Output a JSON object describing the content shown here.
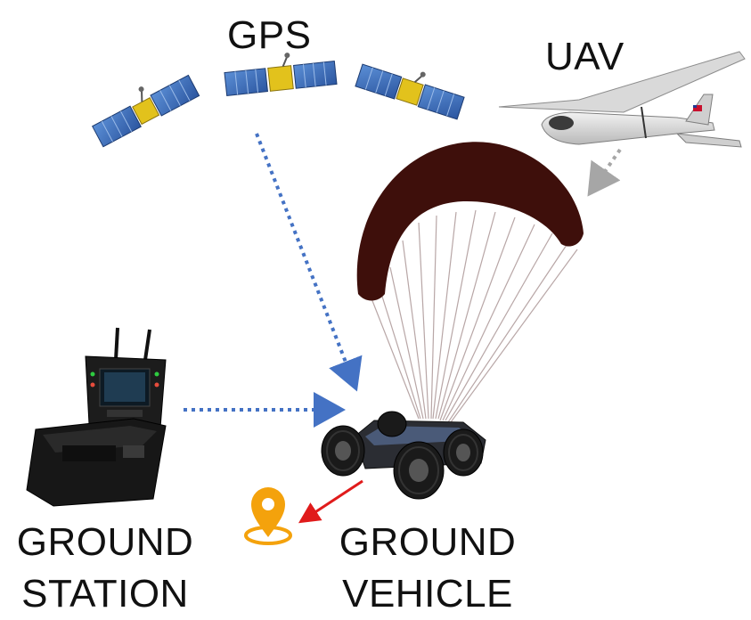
{
  "labels": {
    "gps": "GPS",
    "uav": "UAV",
    "ground_station_line1": "GROUND",
    "ground_station_line2": "STATION",
    "ground_vehicle_line1": "GROUND",
    "ground_vehicle_line2": "VEHICLE"
  },
  "colors": {
    "gps_link": "#4472C4",
    "uav_link": "#A6A6A6",
    "station_link": "#4472C4",
    "vehicle_arrow": "#E01B1B",
    "parafoil": "#3E0F0B",
    "pin": "#F4A20C",
    "satellite_panel": "#3A6BB8",
    "satellite_body": "#E2C21C"
  },
  "icons": [
    "satellite-icon",
    "uav-icon",
    "parafoil-icon",
    "ground-station-icon",
    "ground-vehicle-icon",
    "location-pin-icon"
  ]
}
